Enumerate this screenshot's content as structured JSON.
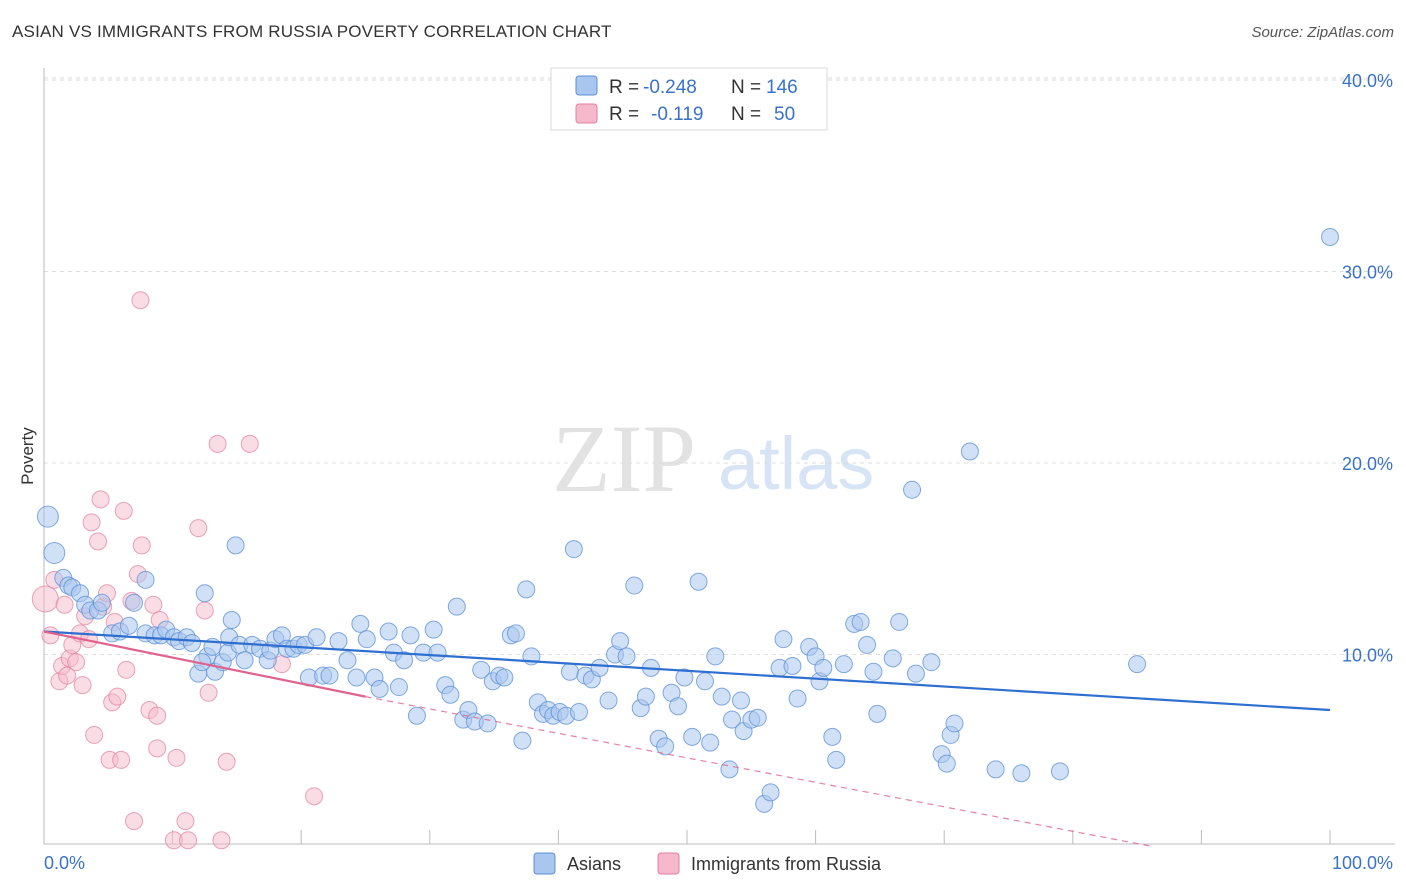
{
  "header": {
    "title": "ASIAN VS IMMIGRANTS FROM RUSSIA POVERTY CORRELATION CHART",
    "source": "Source: ZipAtlas.com"
  },
  "watermark": {
    "zip": "ZIP",
    "atlas": "atlas"
  },
  "colors": {
    "asian_fill": "#a9c6ee",
    "asian_stroke": "#5b8fd6",
    "asian_line": "#2e6fd0",
    "russia_fill": "#f6b9cc",
    "russia_stroke": "#e17fa0",
    "russia_line": "#e0628e",
    "axis_text": "#3a72c9"
  },
  "legend": {
    "rows": [
      {
        "r_label": "R =",
        "r_value": "-0.248",
        "n_label": "N =",
        "n_value": "146"
      },
      {
        "r_label": "R =",
        "r_value": "-0.119",
        "n_label": "N =",
        "n_value": "50"
      }
    ]
  },
  "bottom_legend": {
    "asian": "Asians",
    "russia": "Immigrants from Russia"
  },
  "chart_data": {
    "type": "scatter",
    "title": "ASIAN VS IMMIGRANTS FROM RUSSIA POVERTY CORRELATION CHART",
    "xlabel": "",
    "ylabel": "Poverty",
    "xlim": [
      0,
      100
    ],
    "ylim": [
      0,
      42
    ],
    "x_tick_labels": [
      "0.0%",
      "100.0%"
    ],
    "y_ticks": [
      10,
      20,
      30,
      40
    ],
    "y_tick_labels": [
      "10.0%",
      "20.0%",
      "30.0%",
      "40.0%"
    ],
    "legend_position": "top-center",
    "series": [
      {
        "name": "Asians",
        "r": -0.248,
        "n": 146,
        "trend": {
          "x": [
            0,
            100
          ],
          "y": [
            11.2,
            7.1
          ],
          "dashed": false
        },
        "points": [
          [
            0.3,
            17.2
          ],
          [
            0.8,
            15.3
          ],
          [
            1.5,
            14.0
          ],
          [
            1.9,
            13.6
          ],
          [
            2.2,
            13.5
          ],
          [
            2.8,
            13.2
          ],
          [
            3.2,
            12.6
          ],
          [
            3.6,
            12.3
          ],
          [
            4.2,
            12.3
          ],
          [
            4.5,
            12.7
          ],
          [
            5.3,
            11.1
          ],
          [
            5.9,
            11.2
          ],
          [
            6.6,
            11.5
          ],
          [
            7.0,
            12.7
          ],
          [
            7.9,
            11.1
          ],
          [
            7.9,
            13.9
          ],
          [
            8.6,
            11.0
          ],
          [
            9.1,
            11.0
          ],
          [
            9.5,
            11.3
          ],
          [
            10.1,
            10.9
          ],
          [
            10.5,
            10.7
          ],
          [
            11.1,
            10.9
          ],
          [
            11.5,
            10.6
          ],
          [
            12.0,
            9.0
          ],
          [
            12.5,
            13.2
          ],
          [
            12.7,
            9.9
          ],
          [
            13.3,
            9.1
          ],
          [
            13.1,
            10.4
          ],
          [
            13.9,
            9.6
          ],
          [
            14.3,
            10.1
          ],
          [
            14.6,
            11.8
          ],
          [
            14.4,
            10.9
          ],
          [
            14.9,
            15.7
          ],
          [
            15.2,
            10.5
          ],
          [
            15.6,
            9.7
          ],
          [
            16.2,
            10.5
          ],
          [
            16.8,
            10.3
          ],
          [
            17.4,
            9.7
          ],
          [
            17.6,
            10.2
          ],
          [
            18.0,
            10.8
          ],
          [
            18.5,
            11.0
          ],
          [
            18.9,
            10.3
          ],
          [
            19.4,
            10.3
          ],
          [
            19.8,
            10.5
          ],
          [
            20.3,
            10.5
          ],
          [
            20.6,
            8.8
          ],
          [
            21.2,
            10.9
          ],
          [
            21.7,
            8.9
          ],
          [
            22.2,
            8.9
          ],
          [
            22.9,
            10.7
          ],
          [
            23.6,
            9.7
          ],
          [
            24.3,
            8.8
          ],
          [
            24.6,
            11.6
          ],
          [
            25.1,
            10.8
          ],
          [
            25.7,
            8.8
          ],
          [
            26.1,
            8.2
          ],
          [
            26.8,
            11.2
          ],
          [
            27.2,
            10.1
          ],
          [
            27.6,
            8.3
          ],
          [
            28.0,
            9.7
          ],
          [
            28.5,
            11.0
          ],
          [
            29.0,
            6.8
          ],
          [
            29.5,
            10.1
          ],
          [
            30.3,
            11.3
          ],
          [
            30.6,
            10.1
          ],
          [
            31.2,
            8.4
          ],
          [
            31.6,
            7.9
          ],
          [
            32.1,
            12.5
          ],
          [
            32.6,
            6.6
          ],
          [
            33.0,
            7.1
          ],
          [
            33.5,
            6.5
          ],
          [
            34.0,
            9.2
          ],
          [
            34.5,
            6.4
          ],
          [
            34.9,
            8.6
          ],
          [
            35.4,
            8.9
          ],
          [
            35.8,
            8.8
          ],
          [
            36.3,
            11.0
          ],
          [
            36.7,
            11.1
          ],
          [
            37.2,
            5.5
          ],
          [
            37.5,
            13.4
          ],
          [
            37.9,
            9.9
          ],
          [
            38.4,
            7.5
          ],
          [
            38.8,
            6.9
          ],
          [
            39.2,
            7.1
          ],
          [
            39.6,
            6.8
          ],
          [
            40.1,
            7.0
          ],
          [
            40.6,
            6.8
          ],
          [
            40.9,
            9.1
          ],
          [
            41.2,
            15.5
          ],
          [
            41.6,
            7.0
          ],
          [
            42.1,
            8.9
          ],
          [
            42.6,
            8.7
          ],
          [
            43.2,
            9.3
          ],
          [
            43.9,
            7.6
          ],
          [
            44.4,
            10.0
          ],
          [
            44.8,
            10.7
          ],
          [
            45.3,
            9.9
          ],
          [
            45.9,
            13.6
          ],
          [
            46.4,
            7.2
          ],
          [
            46.8,
            7.8
          ],
          [
            47.2,
            9.3
          ],
          [
            47.8,
            5.6
          ],
          [
            48.3,
            5.2
          ],
          [
            48.8,
            8.0
          ],
          [
            49.3,
            7.3
          ],
          [
            49.8,
            8.8
          ],
          [
            50.4,
            5.7
          ],
          [
            50.9,
            13.8
          ],
          [
            51.4,
            8.6
          ],
          [
            51.8,
            5.4
          ],
          [
            52.2,
            9.9
          ],
          [
            52.7,
            7.8
          ],
          [
            53.3,
            4.0
          ],
          [
            53.5,
            6.6
          ],
          [
            54.2,
            7.6
          ],
          [
            54.4,
            6.0
          ],
          [
            55.0,
            6.6
          ],
          [
            55.5,
            6.7
          ],
          [
            56.0,
            2.2
          ],
          [
            56.5,
            2.8
          ],
          [
            57.2,
            9.3
          ],
          [
            57.5,
            10.8
          ],
          [
            58.2,
            9.4
          ],
          [
            58.6,
            7.7
          ],
          [
            59.5,
            10.4
          ],
          [
            60.0,
            9.9
          ],
          [
            60.3,
            8.6
          ],
          [
            60.6,
            9.3
          ],
          [
            61.3,
            5.7
          ],
          [
            61.6,
            4.5
          ],
          [
            62.2,
            9.5
          ],
          [
            63.0,
            11.6
          ],
          [
            63.5,
            11.7
          ],
          [
            64.0,
            10.5
          ],
          [
            64.5,
            9.1
          ],
          [
            64.8,
            6.9
          ],
          [
            66.0,
            9.8
          ],
          [
            66.5,
            11.7
          ],
          [
            67.5,
            18.6
          ],
          [
            67.8,
            9.0
          ],
          [
            69.0,
            9.6
          ],
          [
            69.8,
            4.8
          ],
          [
            70.2,
            4.3
          ],
          [
            70.5,
            5.8
          ],
          [
            70.8,
            6.4
          ],
          [
            72.0,
            20.6
          ],
          [
            74.0,
            4.0
          ],
          [
            76.0,
            3.8
          ],
          [
            79.0,
            3.9
          ],
          [
            85.0,
            9.5
          ],
          [
            100.0,
            31.8
          ],
          [
            12.3,
            9.6
          ]
        ]
      },
      {
        "name": "Immigrants from Russia",
        "r": -0.119,
        "n": 50,
        "trend": {
          "x": [
            0,
            25
          ],
          "y": [
            11.2,
            7.8
          ],
          "dashed": false
        },
        "trend_extension": {
          "x": [
            25,
            86
          ],
          "y": [
            7.8,
            0
          ],
          "dashed": true
        },
        "points": [
          [
            0.1,
            12.9
          ],
          [
            0.5,
            11.0
          ],
          [
            0.8,
            13.9
          ],
          [
            1.2,
            8.6
          ],
          [
            1.4,
            9.4
          ],
          [
            1.6,
            12.6
          ],
          [
            1.8,
            8.9
          ],
          [
            2.0,
            9.8
          ],
          [
            2.2,
            10.5
          ],
          [
            2.5,
            9.6
          ],
          [
            2.8,
            11.1
          ],
          [
            3.0,
            8.4
          ],
          [
            3.2,
            12.0
          ],
          [
            3.5,
            10.8
          ],
          [
            3.7,
            16.9
          ],
          [
            3.9,
            5.8
          ],
          [
            4.2,
            15.9
          ],
          [
            4.4,
            18.1
          ],
          [
            4.6,
            12.5
          ],
          [
            4.9,
            13.2
          ],
          [
            5.1,
            4.5
          ],
          [
            5.3,
            7.5
          ],
          [
            5.5,
            11.7
          ],
          [
            5.7,
            7.8
          ],
          [
            6.0,
            4.5
          ],
          [
            6.2,
            17.5
          ],
          [
            6.4,
            9.2
          ],
          [
            6.8,
            12.8
          ],
          [
            7.0,
            1.3
          ],
          [
            7.3,
            14.2
          ],
          [
            7.6,
            15.7
          ],
          [
            8.2,
            7.1
          ],
          [
            8.5,
            12.6
          ],
          [
            8.8,
            6.8
          ],
          [
            7.5,
            28.5
          ],
          [
            8.8,
            5.1
          ],
          [
            9.0,
            11.8
          ],
          [
            10.1,
            0.3
          ],
          [
            10.3,
            4.6
          ],
          [
            11.0,
            1.3
          ],
          [
            11.2,
            0.3
          ],
          [
            12.0,
            16.6
          ],
          [
            12.5,
            12.3
          ],
          [
            12.8,
            8.0
          ],
          [
            13.5,
            21.0
          ],
          [
            13.8,
            0.3
          ],
          [
            14.2,
            4.4
          ],
          [
            16.0,
            21.0
          ],
          [
            18.5,
            9.5
          ],
          [
            21.0,
            2.6
          ]
        ]
      }
    ]
  }
}
